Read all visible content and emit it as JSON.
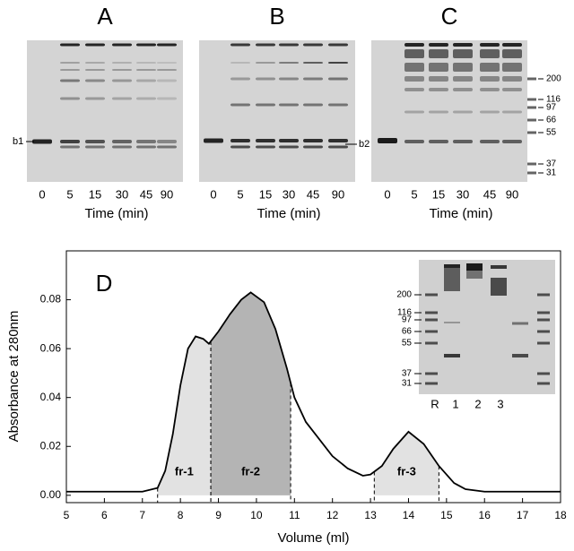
{
  "gels": [
    {
      "label": "A",
      "lanes": [
        "0",
        "5",
        "15",
        "30",
        "45",
        "90"
      ],
      "xlabel": "Time (min)",
      "band_label": "b1"
    },
    {
      "label": "B",
      "lanes": [
        "0",
        "5",
        "15",
        "30",
        "45",
        "90"
      ],
      "xlabel": "Time (min)",
      "band_label": "b2"
    },
    {
      "label": "C",
      "lanes": [
        "0",
        "5",
        "15",
        "30",
        "45",
        "90"
      ],
      "xlabel": "Time (min)"
    }
  ],
  "markers": [
    "200",
    "116",
    "97",
    "66",
    "55",
    "37",
    "31"
  ],
  "inset": {
    "markers": [
      "200",
      "116",
      "97",
      "66",
      "55",
      "37",
      "31"
    ],
    "lanes": [
      "R",
      "1",
      "2",
      "3"
    ]
  },
  "chart_data": {
    "type": "line",
    "title": "D",
    "xlabel": "Volume (ml)",
    "ylabel": "Absorbance at 280nm",
    "x": [
      5,
      7,
      7.4,
      7.6,
      7.8,
      8.0,
      8.2,
      8.4,
      8.6,
      8.75,
      9.0,
      9.3,
      9.6,
      9.85,
      10.2,
      10.5,
      10.8,
      11.0,
      11.3,
      11.6,
      12.0,
      12.4,
      12.8,
      13.0,
      13.3,
      13.6,
      14.0,
      14.4,
      14.8,
      15.2,
      15.5,
      16,
      18
    ],
    "values": [
      0.0015,
      0.0015,
      0.003,
      0.01,
      0.025,
      0.045,
      0.06,
      0.065,
      0.064,
      0.062,
      0.067,
      0.074,
      0.08,
      0.083,
      0.079,
      0.068,
      0.052,
      0.04,
      0.03,
      0.024,
      0.016,
      0.011,
      0.008,
      0.0085,
      0.012,
      0.019,
      0.026,
      0.021,
      0.012,
      0.005,
      0.0025,
      0.0015,
      0.0015
    ],
    "color": "#000000",
    "xlim": [
      5,
      18
    ],
    "xticks": [
      5,
      6,
      7,
      8,
      9,
      10,
      11,
      12,
      13,
      14,
      15,
      16,
      17,
      18
    ],
    "ylim": [
      -0.003,
      0.1
    ],
    "yticks": [
      {
        "value": 0,
        "label": "0.00"
      },
      0.02,
      0.04,
      0.06,
      0.08
    ],
    "fractions": [
      {
        "name": "fr-1",
        "range": [
          7.4,
          8.8
        ],
        "color": "#e2e2e2"
      },
      {
        "name": "fr-2",
        "range": [
          8.8,
          10.9
        ],
        "color": "#b4b4b4"
      },
      {
        "name": "fr-3",
        "range": [
          13.1,
          14.8
        ],
        "color": "#e2e2e2"
      }
    ]
  }
}
